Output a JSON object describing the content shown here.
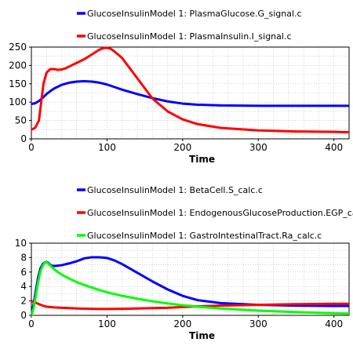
{
  "chart_data": [
    {
      "type": "line",
      "xlabel": "Time",
      "ylabel": "",
      "xlim": [
        0,
        420
      ],
      "ylim": [
        0,
        250
      ],
      "xticks": [
        "0",
        "100",
        "200",
        "300",
        "400"
      ],
      "yticks": [
        "0",
        "50",
        "100",
        "150",
        "200",
        "250"
      ],
      "grid": true,
      "legend_placement": "top",
      "series": [
        {
          "name": "GlucoseInsulinModel 1: PlasmaGlucose.G_signal.c",
          "color": "#0000ff",
          "x": [
            0,
            5,
            10,
            15,
            20,
            25,
            30,
            40,
            50,
            60,
            70,
            80,
            90,
            100,
            110,
            120,
            140,
            160,
            180,
            200,
            220,
            250,
            300,
            350,
            400,
            420
          ],
          "y": [
            95,
            97,
            103,
            112,
            122,
            130,
            137,
            147,
            153,
            156,
            157,
            156,
            153,
            148,
            141,
            134,
            122,
            111,
            102,
            96,
            93,
            91,
            90,
            90,
            90,
            90
          ]
        },
        {
          "name": "GlucoseInsulinModel 1: PlasmaInsulin.I_signal.c",
          "color": "#ff0000",
          "x": [
            0,
            5,
            10,
            13,
            16,
            20,
            25,
            30,
            35,
            40,
            45,
            50,
            60,
            70,
            80,
            90,
            95,
            100,
            105,
            110,
            120,
            140,
            160,
            180,
            200,
            220,
            250,
            300,
            350,
            400,
            420
          ],
          "y": [
            25,
            30,
            50,
            100,
            150,
            180,
            190,
            190,
            188,
            189,
            192,
            197,
            207,
            217,
            230,
            243,
            247,
            248,
            245,
            238,
            220,
            165,
            110,
            75,
            53,
            40,
            30,
            23,
            20,
            19,
            18
          ]
        }
      ]
    },
    {
      "type": "line",
      "xlabel": "Time",
      "ylabel": "",
      "xlim": [
        0,
        420
      ],
      "ylim": [
        0,
        10
      ],
      "xticks": [
        "0",
        "100",
        "200",
        "300",
        "400"
      ],
      "yticks": [
        "0",
        "2",
        "4",
        "6",
        "8",
        "10"
      ],
      "grid": true,
      "legend_placement": "top",
      "series": [
        {
          "name": "GlucoseInsulinModel 1: BetaCell.S_calc.c",
          "color": "#0000ff",
          "x": [
            0,
            3,
            6,
            9,
            12,
            15,
            18,
            20,
            22,
            25,
            28,
            32,
            36,
            40,
            50,
            60,
            70,
            80,
            90,
            100,
            110,
            120,
            140,
            160,
            180,
            200,
            220,
            250,
            300,
            350,
            400,
            420
          ],
          "y": [
            0.2,
            1.5,
            3.5,
            5.3,
            6.5,
            7.1,
            7.35,
            7.4,
            7.3,
            7.0,
            6.85,
            6.85,
            6.9,
            6.95,
            7.2,
            7.5,
            7.9,
            8.05,
            8.05,
            7.95,
            7.6,
            7.1,
            5.9,
            4.7,
            3.6,
            2.7,
            2.1,
            1.7,
            1.45,
            1.35,
            1.3,
            1.3
          ]
        },
        {
          "name": "GlucoseInsulinModel 1: EndogenousGlucoseProduction.EGP_calc.c",
          "color": "#ff0000",
          "x": [
            0,
            5,
            10,
            15,
            20,
            25,
            30,
            40,
            50,
            60,
            70,
            80,
            90,
            100,
            120,
            140,
            160,
            180,
            200,
            220,
            250,
            300,
            350,
            400,
            420
          ],
          "y": [
            2.0,
            1.8,
            1.55,
            1.35,
            1.2,
            1.15,
            1.1,
            1.05,
            1.0,
            0.95,
            0.92,
            0.9,
            0.88,
            0.88,
            0.9,
            0.95,
            1.0,
            1.05,
            1.15,
            1.25,
            1.35,
            1.45,
            1.55,
            1.6,
            1.6
          ]
        },
        {
          "name": "GlucoseInsulinModel 1: GastroIntestinalTract.Ra_calc.c",
          "color": "#00ff00",
          "x": [
            0,
            3,
            6,
            9,
            12,
            15,
            18,
            20,
            22,
            25,
            30,
            35,
            40,
            50,
            60,
            70,
            80,
            90,
            100,
            120,
            140,
            160,
            180,
            200,
            220,
            250,
            300,
            350,
            400,
            420
          ],
          "y": [
            0,
            1.0,
            2.8,
            4.7,
            6.1,
            6.9,
            7.3,
            7.35,
            7.2,
            6.9,
            6.4,
            6.0,
            5.65,
            5.1,
            4.6,
            4.2,
            3.85,
            3.5,
            3.2,
            2.7,
            2.3,
            1.95,
            1.65,
            1.4,
            1.2,
            0.95,
            0.65,
            0.45,
            0.3,
            0.25
          ]
        }
      ]
    }
  ]
}
